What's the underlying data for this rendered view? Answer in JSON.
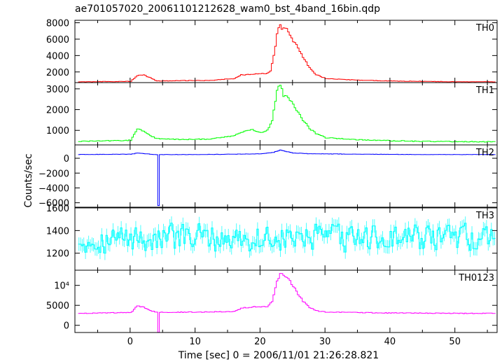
{
  "colors": {
    "background": "#ffffff",
    "axis": "#000000",
    "TH0": "#ff0000",
    "TH1": "#00ff00",
    "TH2": "#0000ff",
    "TH3": "#00ffff",
    "TH0123": "#ff00ff"
  },
  "chart_data": {
    "type": "line",
    "title": "ae701057020_20061101212628_wam0_bst_4band_16bin.qdp",
    "xlabel": "Time [sec] 0 = 2006/11/01 21:26:28.821",
    "ylabel": "Counts/sec",
    "xlim": [
      -8.5,
      56.5
    ],
    "x_ticks": [
      0,
      10,
      20,
      30,
      40,
      50
    ],
    "x_tick_labels": [
      "0",
      "10",
      "20",
      "30",
      "40",
      "50"
    ],
    "layout": "5 vertically stacked panels sharing the x axis",
    "grid": false,
    "step_style": true,
    "error_bars": true,
    "panels": [
      {
        "name": "TH0",
        "ylim": [
          700,
          8300
        ],
        "y_ticks": [
          2000,
          4000,
          6000,
          8000
        ],
        "y_tick_labels": [
          "2000",
          "4000",
          "6000",
          "8000"
        ],
        "points": [
          [
            -8,
            800
          ],
          [
            0,
            850
          ],
          [
            0.5,
            1200
          ],
          [
            1,
            1550
          ],
          [
            2,
            1600
          ],
          [
            3,
            1300
          ],
          [
            4,
            900
          ],
          [
            8,
            950
          ],
          [
            12,
            950
          ],
          [
            16,
            1200
          ],
          [
            17,
            1650
          ],
          [
            19,
            1750
          ],
          [
            21,
            1800
          ],
          [
            21.5,
            2100
          ],
          [
            22,
            4000
          ],
          [
            22.5,
            6500
          ],
          [
            23,
            8000
          ],
          [
            23.3,
            7200
          ],
          [
            23.8,
            7600
          ],
          [
            24.5,
            6500
          ],
          [
            25.5,
            5200
          ],
          [
            26.5,
            3800
          ],
          [
            27.5,
            2500
          ],
          [
            28.5,
            1700
          ],
          [
            30,
            1200
          ],
          [
            35,
            1000
          ],
          [
            40,
            900
          ],
          [
            45,
            850
          ],
          [
            50,
            800
          ],
          [
            56,
            800
          ]
        ]
      },
      {
        "name": "TH1",
        "ylim": [
          300,
          3300
        ],
        "y_ticks": [
          1000,
          2000,
          3000
        ],
        "y_tick_labels": [
          "1000",
          "2000",
          "3000"
        ],
        "points": [
          [
            -8,
            470
          ],
          [
            0,
            520
          ],
          [
            0.5,
            800
          ],
          [
            1,
            1100
          ],
          [
            2,
            950
          ],
          [
            3,
            750
          ],
          [
            4,
            600
          ],
          [
            8,
            560
          ],
          [
            12,
            580
          ],
          [
            16,
            750
          ],
          [
            17,
            900
          ],
          [
            18.5,
            1050
          ],
          [
            20,
            900
          ],
          [
            21,
            1000
          ],
          [
            21.8,
            1500
          ],
          [
            22.5,
            3000
          ],
          [
            23,
            3200
          ],
          [
            23.5,
            2700
          ],
          [
            24.5,
            2500
          ],
          [
            25.5,
            2000
          ],
          [
            26.5,
            1500
          ],
          [
            27.5,
            1100
          ],
          [
            28.5,
            850
          ],
          [
            30,
            650
          ],
          [
            35,
            550
          ],
          [
            40,
            500
          ],
          [
            45,
            470
          ],
          [
            50,
            460
          ],
          [
            56,
            450
          ]
        ]
      },
      {
        "name": "TH2",
        "ylim": [
          -6600,
          1800
        ],
        "y_ticks": [
          -6000,
          -4000,
          -2000,
          0
        ],
        "y_tick_labels": [
          "−6000",
          "−4000",
          "−2000",
          "0"
        ],
        "points": [
          [
            -8,
            500
          ],
          [
            0,
            550
          ],
          [
            1,
            700
          ],
          [
            3,
            550
          ],
          [
            4,
            500
          ],
          [
            4.05,
            -6500
          ],
          [
            4.4,
            -6500
          ],
          [
            4.45,
            500
          ],
          [
            10,
            500
          ],
          [
            16,
            550
          ],
          [
            20,
            600
          ],
          [
            22,
            800
          ],
          [
            23,
            1100
          ],
          [
            24,
            900
          ],
          [
            25,
            700
          ],
          [
            28,
            600
          ],
          [
            35,
            550
          ],
          [
            45,
            500
          ],
          [
            56,
            500
          ]
        ]
      },
      {
        "name": "TH3",
        "ylim": [
          1050,
          1600
        ],
        "y_ticks": [
          1200,
          1400,
          1600
        ],
        "y_tick_labels": [
          "1200",
          "1400",
          "1600"
        ],
        "mean": 1330,
        "noise_amplitude": 170,
        "noise_seed": 7
      },
      {
        "name": "TH0123",
        "ylim": [
          -1800,
          13800
        ],
        "y_ticks": [
          0,
          5000,
          10000
        ],
        "y_tick_labels": [
          "0",
          "5000",
          "10⁴"
        ],
        "points": [
          [
            -8,
            3000
          ],
          [
            0,
            3200
          ],
          [
            0.5,
            4000
          ],
          [
            1,
            4800
          ],
          [
            2,
            4500
          ],
          [
            3,
            3700
          ],
          [
            4,
            3300
          ],
          [
            4.05,
            -1800
          ],
          [
            4.4,
            -1800
          ],
          [
            4.45,
            3300
          ],
          [
            10,
            3300
          ],
          [
            16,
            3500
          ],
          [
            17,
            4300
          ],
          [
            19,
            4600
          ],
          [
            21,
            4700
          ],
          [
            21.8,
            6000
          ],
          [
            22.5,
            11000
          ],
          [
            23,
            13000
          ],
          [
            23.5,
            12500
          ],
          [
            24.5,
            11000
          ],
          [
            25.5,
            8500
          ],
          [
            26.5,
            6000
          ],
          [
            27.5,
            4500
          ],
          [
            28.5,
            3700
          ],
          [
            30,
            3300
          ],
          [
            40,
            3100
          ],
          [
            50,
            3000
          ],
          [
            56,
            3000
          ]
        ]
      }
    ]
  }
}
